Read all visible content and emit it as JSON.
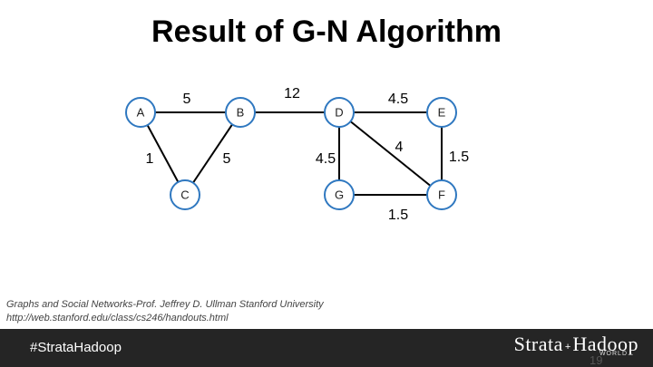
{
  "title": "Result of G-N Algorithm",
  "nodes": [
    {
      "id": "A",
      "label": "A"
    },
    {
      "id": "B",
      "label": "B"
    },
    {
      "id": "C",
      "label": "C"
    },
    {
      "id": "D",
      "label": "D"
    },
    {
      "id": "E",
      "label": "E"
    },
    {
      "id": "F",
      "label": "F"
    },
    {
      "id": "G",
      "label": "G"
    }
  ],
  "edges": [
    {
      "from": "A",
      "to": "B",
      "weight": "5"
    },
    {
      "from": "A",
      "to": "C",
      "weight": "1"
    },
    {
      "from": "B",
      "to": "C",
      "weight": "5"
    },
    {
      "from": "B",
      "to": "D",
      "weight": "12"
    },
    {
      "from": "D",
      "to": "E",
      "weight": "4.5"
    },
    {
      "from": "D",
      "to": "G",
      "weight": "4.5"
    },
    {
      "from": "D",
      "to": "F",
      "weight": "4"
    },
    {
      "from": "E",
      "to": "F",
      "weight": "1.5"
    },
    {
      "from": "G",
      "to": "F",
      "weight": "1.5"
    }
  ],
  "citation": {
    "line1": "Graphs and Social Networks-Prof. Jeffrey D. Ullman Stanford University",
    "line2": "http://web.stanford.edu/class/cs246/handouts.html"
  },
  "footer": {
    "hashtag": "#StrataHadoop",
    "brand_left": "Strata",
    "brand_separator": "+",
    "brand_right": "Hadoop",
    "brand_sub": "WORLD"
  },
  "page_number": "19",
  "colors": {
    "node_stroke": "#2f78c0",
    "footer_bg": "#252525"
  }
}
